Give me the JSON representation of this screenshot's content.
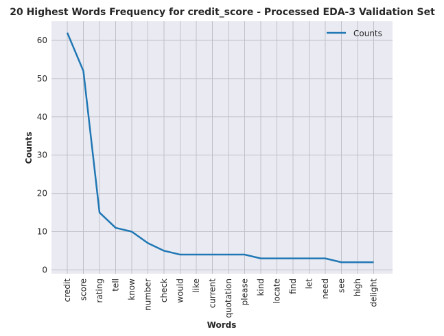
{
  "chart_data": {
    "type": "line",
    "title": "20 Highest Words Frequency for credit_score - Processed EDA-3 Validation Set",
    "xlabel": "Words",
    "ylabel": "Counts",
    "categories": [
      "credit",
      "score",
      "rating",
      "tell",
      "know",
      "number",
      "check",
      "would",
      "like",
      "current",
      "quotation",
      "please",
      "kind",
      "locate",
      "find",
      "let",
      "need",
      "see",
      "high",
      "delight"
    ],
    "series": [
      {
        "name": "Counts",
        "values": [
          62,
          52,
          15,
          11,
          10,
          7,
          5,
          4,
          4,
          4,
          4,
          4,
          3,
          3,
          3,
          3,
          3,
          2,
          2,
          2
        ]
      }
    ],
    "ylim": [
      -1,
      65
    ],
    "yticks": [
      0,
      10,
      20,
      30,
      40,
      50,
      60
    ],
    "grid": true,
    "legend": "top-right",
    "colors": {
      "line": "#1f77b4",
      "plot_background": "#eaeaf2",
      "grid": "#c0c0c8"
    }
  }
}
